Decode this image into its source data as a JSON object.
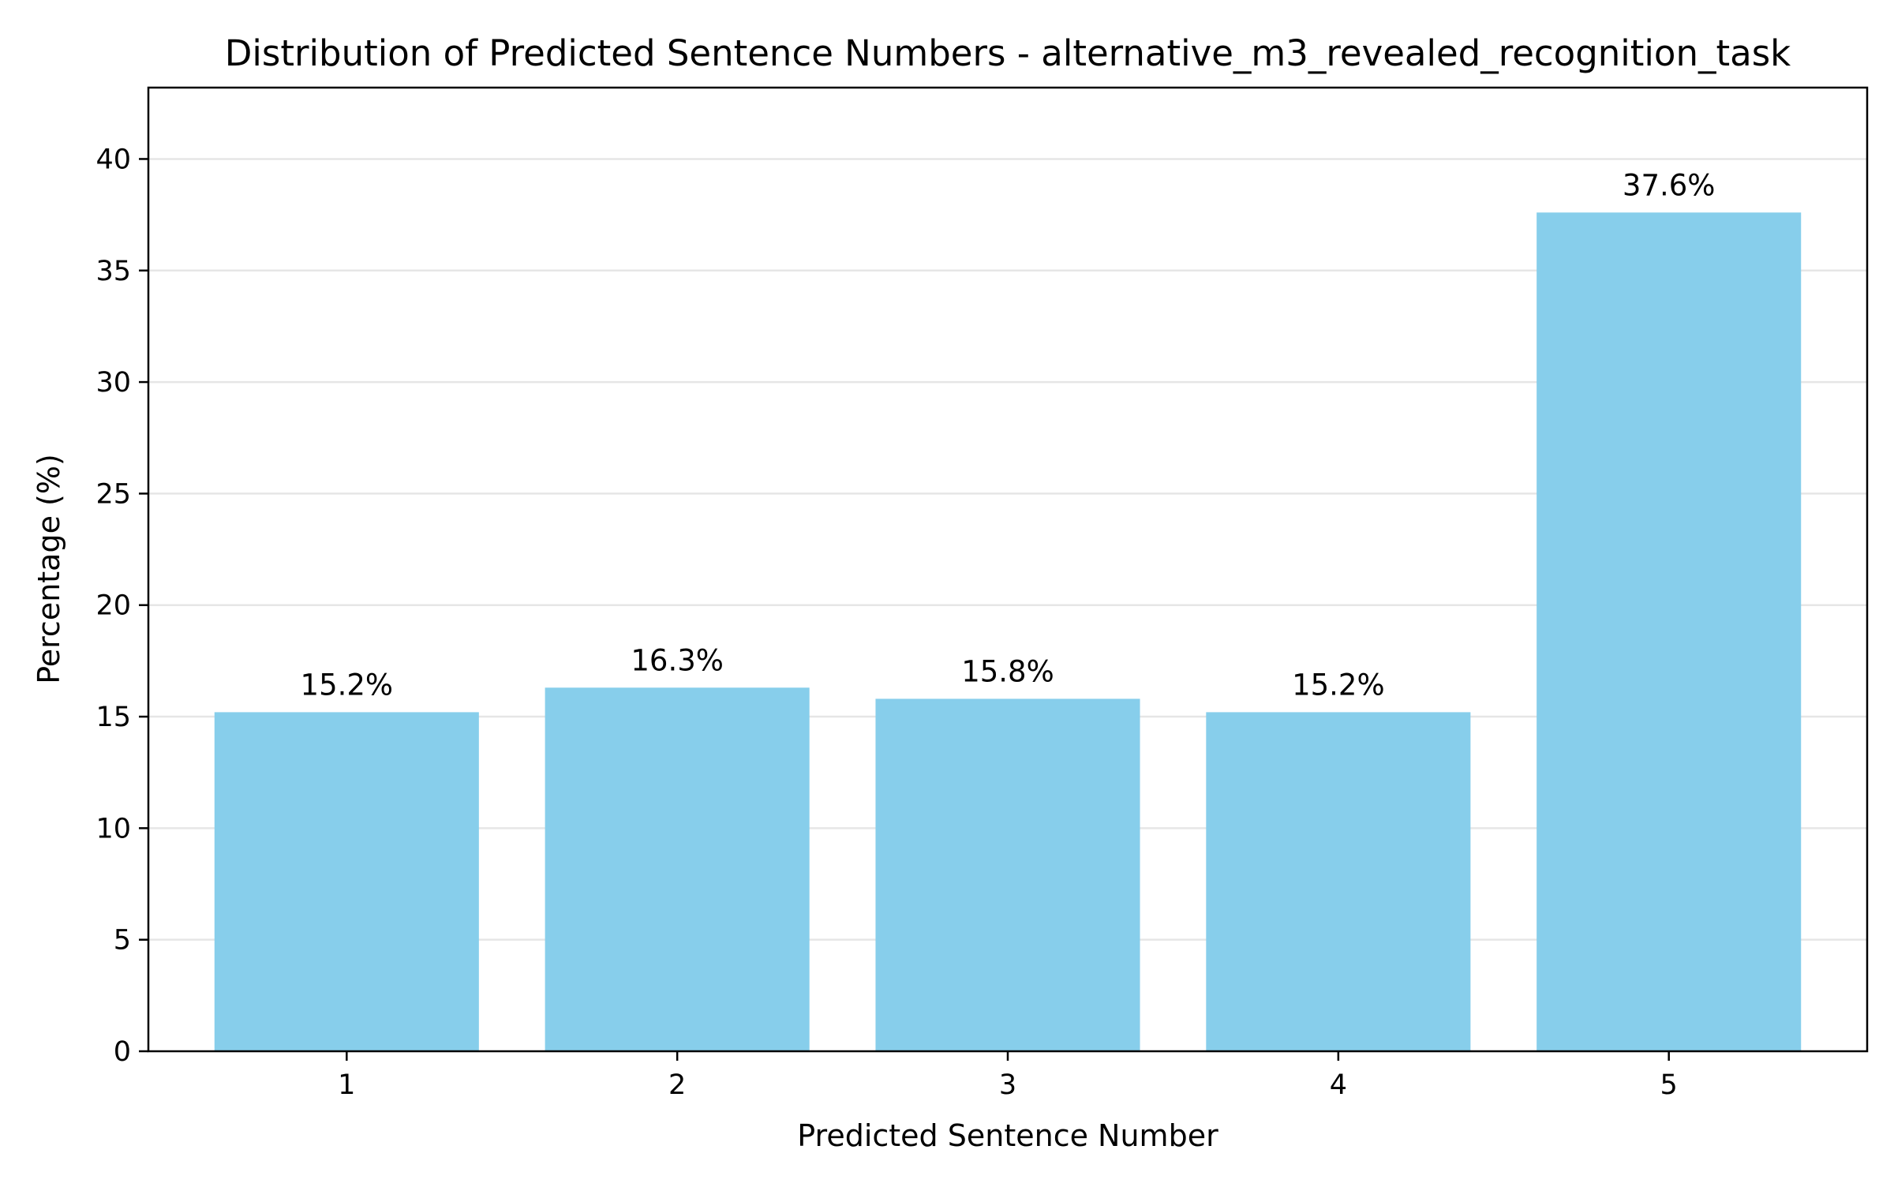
{
  "chart_data": {
    "type": "bar",
    "title": "Distribution of Predicted Sentence Numbers - alternative_m3_revealed_recognition_task",
    "xlabel": "Predicted Sentence Number",
    "ylabel": "Percentage (%)",
    "categories": [
      "1",
      "2",
      "3",
      "4",
      "5"
    ],
    "values": [
      15.2,
      16.3,
      15.8,
      15.2,
      37.6
    ],
    "data_labels": [
      "15.2%",
      "16.3%",
      "15.8%",
      "15.2%",
      "37.6%"
    ],
    "ylim": [
      0,
      43.2
    ],
    "yticks": [
      0,
      5,
      10,
      15,
      20,
      25,
      30,
      35,
      40
    ],
    "grid": "y-axis horizontal lines",
    "bar_color": "#87ceeb",
    "grid_color": "#e6e6e6",
    "axis_color": "#000000"
  }
}
